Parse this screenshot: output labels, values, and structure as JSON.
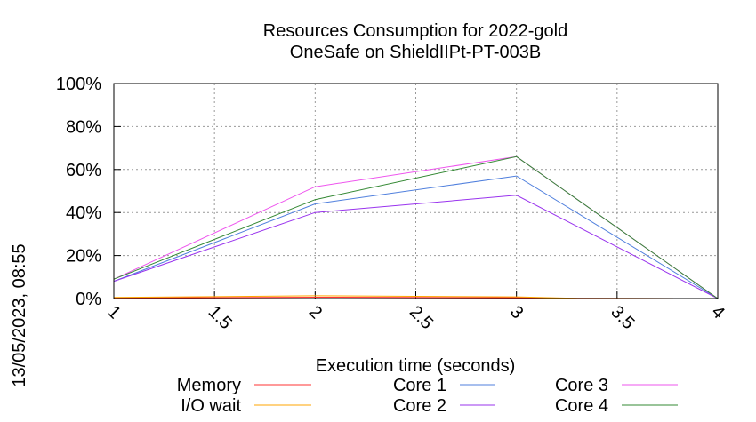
{
  "chart_data": {
    "type": "line",
    "title": "Resources Consumption for 2022-gold",
    "subtitle": "OneSafe on ShieldIIPt-PT-003B",
    "xlabel": "Execution time (seconds)",
    "ylabel": "",
    "side_label": "13/05/2023, 08:55",
    "xlim": [
      1,
      4
    ],
    "ylim": [
      0,
      100
    ],
    "x_ticks": [
      {
        "value": 1,
        "label": "1"
      },
      {
        "value": 1.5,
        "label": "1.5"
      },
      {
        "value": 2,
        "label": "2"
      },
      {
        "value": 2.5,
        "label": "2.5"
      },
      {
        "value": 3,
        "label": "3"
      },
      {
        "value": 3.5,
        "label": "3.5"
      },
      {
        "value": 4,
        "label": "4"
      }
    ],
    "y_ticks": [
      {
        "value": 0,
        "label": "0%"
      },
      {
        "value": 20,
        "label": "20%"
      },
      {
        "value": 40,
        "label": "40%"
      },
      {
        "value": 60,
        "label": "60%"
      },
      {
        "value": 80,
        "label": "80%"
      },
      {
        "value": 100,
        "label": "100%"
      }
    ],
    "grid": true,
    "legend_position": "bottom",
    "series": [
      {
        "name": "Memory",
        "color": "#ff3333",
        "x": [
          1,
          2,
          3,
          3.3,
          4
        ],
        "y": [
          0.3,
          0.6,
          0.4,
          0.1,
          0
        ]
      },
      {
        "name": "I/O wait",
        "color": "#ffa500",
        "x": [
          1,
          2,
          3,
          3.3,
          4
        ],
        "y": [
          0.5,
          1.3,
          0.8,
          0.1,
          0
        ]
      },
      {
        "name": "Core 1",
        "color": "#4f7fdd",
        "x": [
          1,
          2,
          3,
          4
        ],
        "y": [
          8,
          44,
          57,
          0
        ]
      },
      {
        "name": "Core 2",
        "color": "#9933ee",
        "x": [
          1,
          2,
          3,
          4
        ],
        "y": [
          8,
          40,
          48,
          0
        ]
      },
      {
        "name": "Core 3",
        "color": "#ee55ee",
        "x": [
          1,
          2,
          3,
          4
        ],
        "y": [
          9,
          52,
          66,
          0
        ]
      },
      {
        "name": "Core 4",
        "color": "#338833",
        "x": [
          1,
          2,
          3,
          4
        ],
        "y": [
          9,
          46,
          66,
          0
        ]
      }
    ]
  }
}
